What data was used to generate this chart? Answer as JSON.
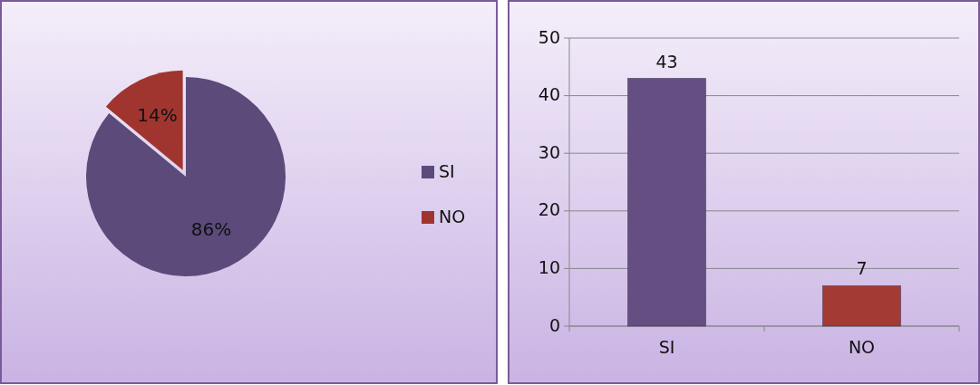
{
  "chart_data": [
    {
      "type": "pie",
      "categories": [
        "SI",
        "NO"
      ],
      "values": [
        86,
        14
      ],
      "colors": [
        "#5b4a7a",
        "#a0352f"
      ],
      "value_labels": [
        "86%",
        "14%"
      ],
      "legend": "right"
    },
    {
      "type": "bar",
      "categories": [
        "SI",
        "NO"
      ],
      "values": [
        43,
        7
      ],
      "colors": [
        "#654f82",
        "#a33a33"
      ],
      "ylim": [
        0,
        50
      ],
      "yticks": [
        0,
        10,
        20,
        30,
        40,
        50
      ],
      "grid": "y",
      "data_labels": true
    }
  ]
}
